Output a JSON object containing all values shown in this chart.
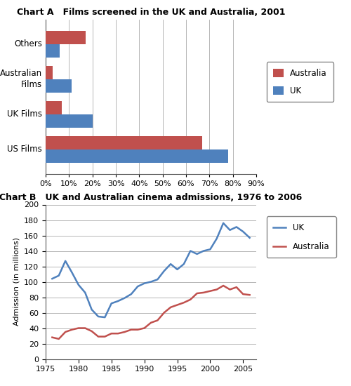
{
  "chart_a": {
    "title": "Chart A   Films screened in the UK and Australia, 2001",
    "categories": [
      "US Films",
      "UK Films",
      "Australian\nFilms",
      "Others"
    ],
    "australia": [
      0.67,
      0.07,
      0.03,
      0.17
    ],
    "uk": [
      0.78,
      0.2,
      0.11,
      0.06
    ],
    "australia_color": "#C0504D",
    "uk_color": "#4F81BD",
    "xticks": [
      0.0,
      0.1,
      0.2,
      0.3,
      0.4,
      0.5,
      0.6,
      0.7,
      0.8,
      0.9
    ],
    "xtick_labels": [
      "0%",
      "10%",
      "20%",
      "30%",
      "40%",
      "50%",
      "60%",
      "70%",
      "80%",
      "90%"
    ]
  },
  "chart_b": {
    "title": "Chart B   UK and Australian cinema admissions, 1976 to 2006",
    "ylabel": "Admission (in millions)",
    "uk_years": [
      1976,
      1977,
      1978,
      1979,
      1980,
      1981,
      1982,
      1983,
      1984,
      1985,
      1986,
      1987,
      1988,
      1989,
      1990,
      1991,
      1992,
      1993,
      1994,
      1995,
      1996,
      1997,
      1998,
      1999,
      2000,
      2001,
      2002,
      2003,
      2004,
      2005,
      2006
    ],
    "uk_values": [
      104,
      108,
      127,
      112,
      96,
      86,
      64,
      55,
      54,
      72,
      75,
      79,
      84,
      94,
      98,
      100,
      103,
      114,
      123,
      116,
      123,
      140,
      136,
      140,
      142,
      156,
      176,
      167,
      171,
      165,
      157
    ],
    "aus_years": [
      1976,
      1977,
      1978,
      1979,
      1980,
      1981,
      1982,
      1983,
      1984,
      1985,
      1986,
      1987,
      1988,
      1989,
      1990,
      1991,
      1992,
      1993,
      1994,
      1995,
      1996,
      1997,
      1998,
      1999,
      2000,
      2001,
      2002,
      2003,
      2004,
      2005,
      2006
    ],
    "aus_values": [
      28,
      26,
      35,
      38,
      40,
      40,
      36,
      29,
      29,
      33,
      33,
      35,
      38,
      38,
      40,
      47,
      50,
      60,
      67,
      70,
      73,
      77,
      85,
      86,
      88,
      90,
      95,
      90,
      93,
      84,
      83
    ],
    "uk_color": "#4F81BD",
    "aus_color": "#C0504D",
    "yticks": [
      0,
      20,
      40,
      60,
      80,
      100,
      120,
      140,
      160,
      180,
      200
    ],
    "xticks": [
      1975,
      1980,
      1985,
      1990,
      1995,
      2000,
      2005
    ],
    "ylim": [
      0,
      200
    ],
    "xlim": [
      1975,
      2007
    ]
  }
}
